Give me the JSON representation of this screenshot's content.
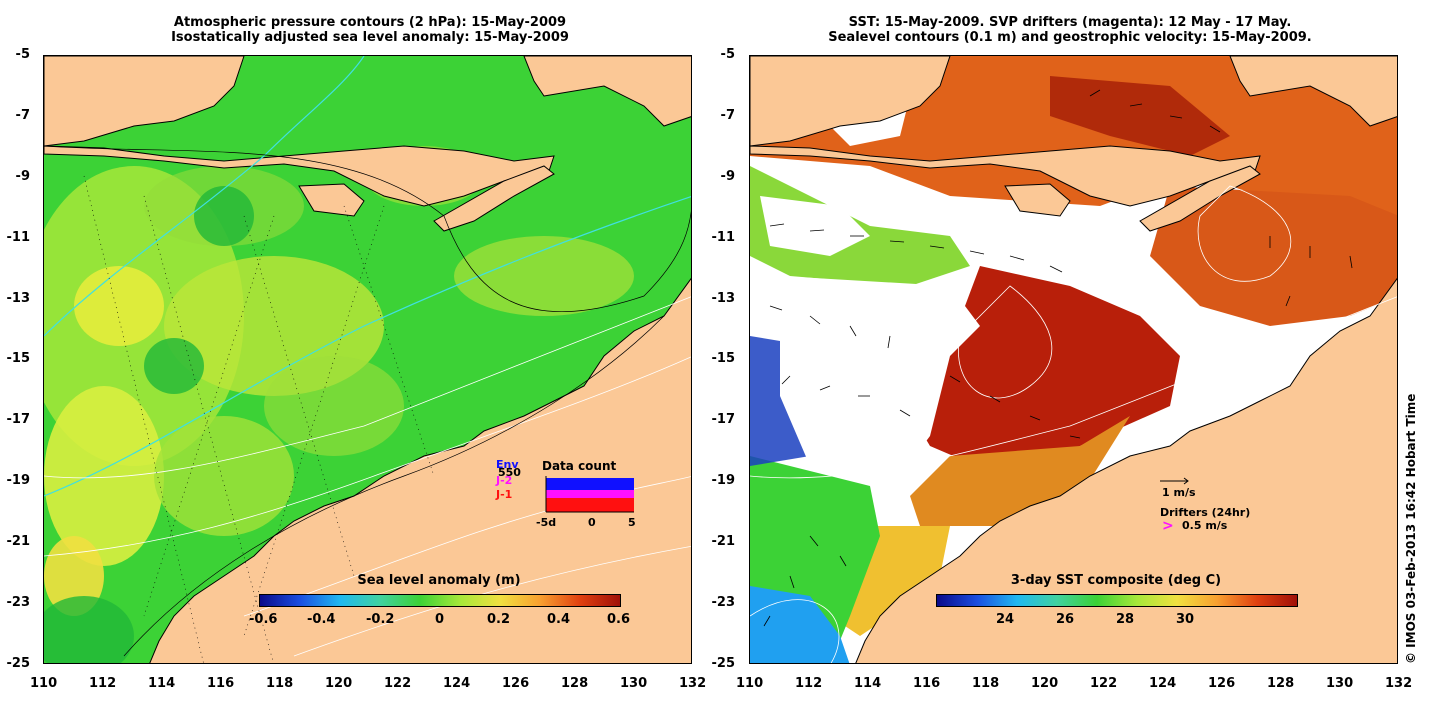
{
  "left_panel": {
    "title_line1": "Atmospheric pressure contours (2 hPa): 15-May-2009",
    "title_line2": "Isostatically adjusted sea level anomaly: 15-May-2009",
    "colorbar": {
      "label": "Sea level anomaly (m)",
      "ticks": [
        "-0.6",
        "-0.4",
        "-0.2",
        "0",
        "0.2",
        "0.4",
        "0.6"
      ]
    },
    "inset": {
      "title": "Data count",
      "series": [
        "Env",
        "J-2",
        "J-1"
      ],
      "series_colors": [
        "#1010ff",
        "#ff10ff",
        "#ff1010"
      ],
      "extra_label": "550",
      "x_ticks": [
        "-5d",
        "0",
        "5"
      ]
    }
  },
  "right_panel": {
    "title_line1": "SST: 15-May-2009. SVP drifters (magenta): 12 May - 17 May.",
    "title_line2": "Sealevel contours (0.1 m) and geostrophic velocity: 15-May-2009.",
    "colorbar": {
      "label": "3-day SST composite (deg C)",
      "ticks": [
        "24",
        "26",
        "28",
        "30"
      ]
    },
    "legend": {
      "vector_label": "1 m/s",
      "drifters_label": "Drifters (24hr)",
      "drifter_speed_label": "0.5 m/s",
      "drifter_symbol": ">"
    }
  },
  "axes": {
    "y_ticks": [
      "-5",
      "-7",
      "-9",
      "-11",
      "-13",
      "-15",
      "-17",
      "-19",
      "-21",
      "-23",
      "-25"
    ],
    "x_ticks": [
      "110",
      "112",
      "114",
      "116",
      "118",
      "120",
      "122",
      "124",
      "126",
      "128",
      "130",
      "132"
    ]
  },
  "credit": "© IMOS 03-Feb-2013 16:42 Hobart Time",
  "colors": {
    "land": "#fbc896",
    "ocean_green": "#3cd236",
    "sst_hot": "#c83a0a",
    "cloud": "#ffffff"
  }
}
